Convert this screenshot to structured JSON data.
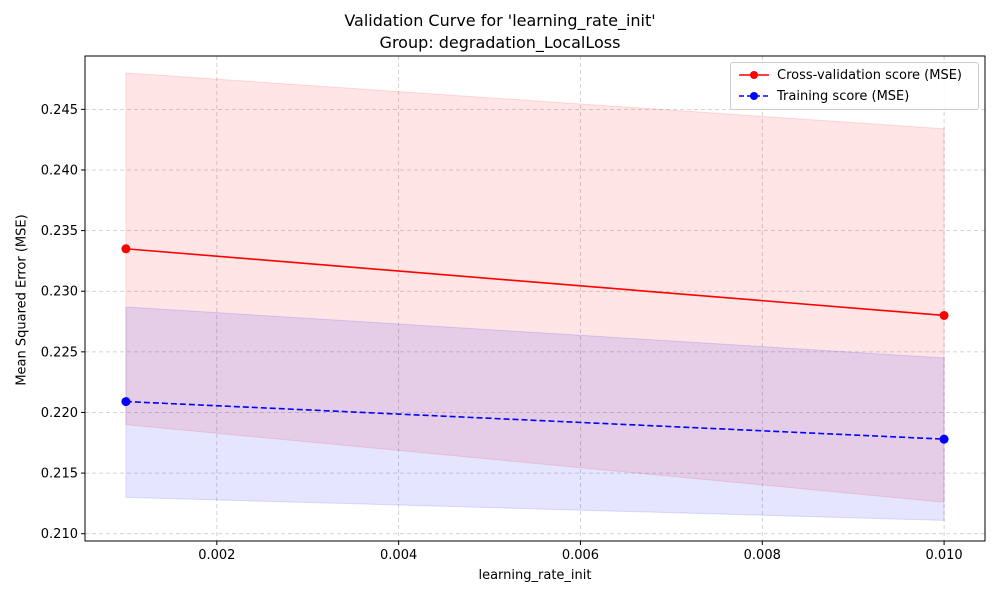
{
  "chart_data": {
    "type": "line",
    "title": "Validation Curve for 'learning_rate_init'",
    "subtitle": "Group: degradation_LocalLoss",
    "xlabel": "learning_rate_init",
    "ylabel": "Mean Squared Error (MSE)",
    "x": [
      0.001,
      0.01
    ],
    "xlim": [
      0.00055,
      0.01045
    ],
    "ylim": [
      0.2094,
      0.2494
    ],
    "xticks": [
      0.002,
      0.004,
      0.006,
      0.008,
      0.01
    ],
    "xtick_labels": [
      "0.002",
      "0.004",
      "0.006",
      "0.008",
      "0.010"
    ],
    "yticks": [
      0.21,
      0.215,
      0.22,
      0.225,
      0.23,
      0.235,
      0.24,
      0.245
    ],
    "ytick_labels": [
      "0.210",
      "0.215",
      "0.220",
      "0.225",
      "0.230",
      "0.235",
      "0.240",
      "0.245"
    ],
    "grid": true,
    "legend_position": "upper-right",
    "series": [
      {
        "name": "Cross-validation score (MSE)",
        "values": [
          0.2335,
          0.228
        ],
        "band_upper": [
          0.248,
          0.2434
        ],
        "band_lower": [
          0.219,
          0.2126
        ],
        "color": "#ff0000",
        "band_color": "#ff0000",
        "style": "solid",
        "marker": "circle"
      },
      {
        "name": "Training score (MSE)",
        "values": [
          0.2209,
          0.2178
        ],
        "band_upper": [
          0.2287,
          0.2245
        ],
        "band_lower": [
          0.213,
          0.2111
        ],
        "color": "#0000ff",
        "band_color": "#0000ff",
        "style": "dashed",
        "marker": "circle"
      }
    ]
  }
}
